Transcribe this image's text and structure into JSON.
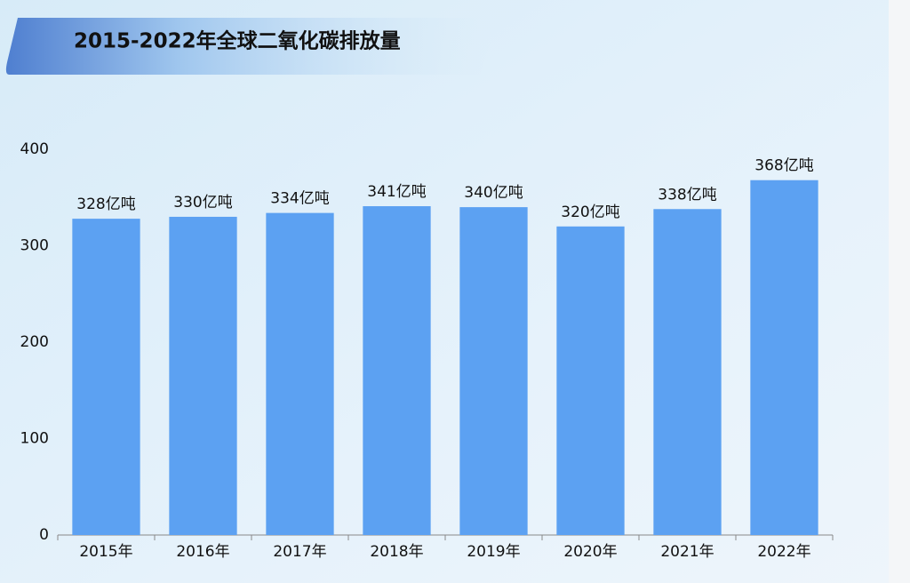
{
  "chart_data": {
    "type": "bar",
    "title": "2015-2022年全球二氧化碳排放量",
    "categories": [
      "2015年",
      "2016年",
      "2017年",
      "2018年",
      "2019年",
      "2020年",
      "2021年",
      "2022年"
    ],
    "values": [
      328,
      330,
      334,
      341,
      340,
      320,
      338,
      368
    ],
    "value_labels": [
      "328亿吨",
      "330亿吨",
      "334亿吨",
      "341亿吨",
      "340亿吨",
      "320亿吨",
      "338亿吨",
      "368亿吨"
    ],
    "color": "#5ca1f2",
    "ylim": [
      0,
      400
    ],
    "yticks": [
      0,
      100,
      200,
      300,
      400
    ],
    "grid": false
  }
}
